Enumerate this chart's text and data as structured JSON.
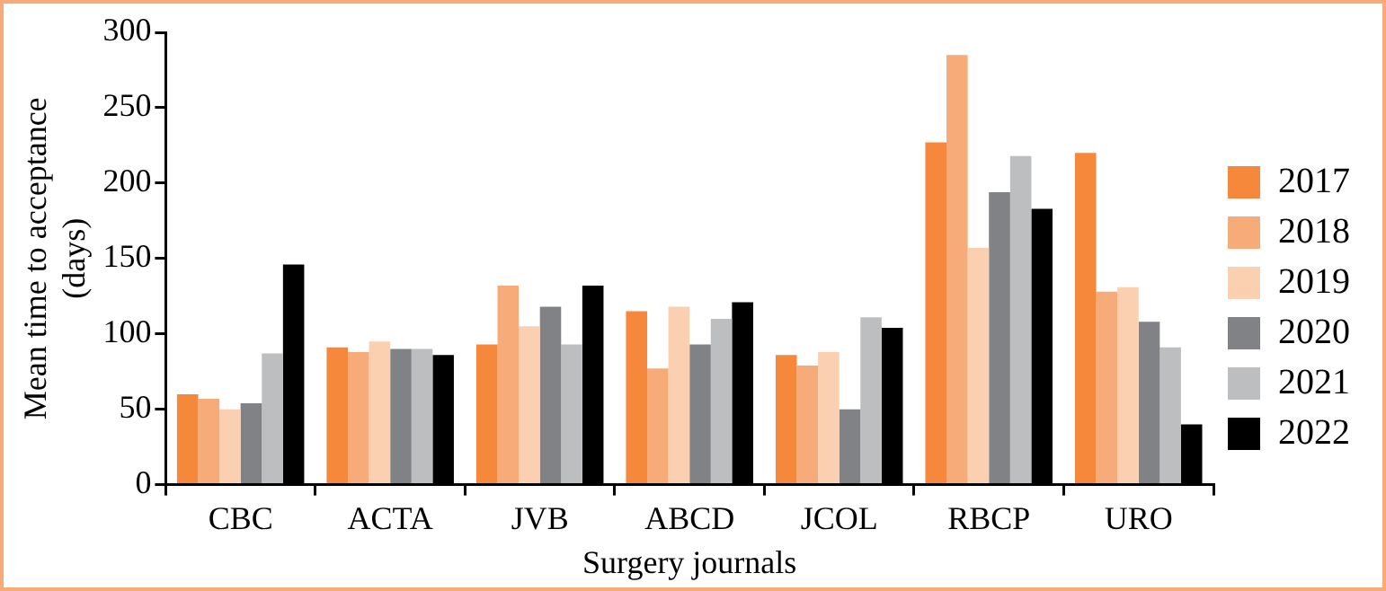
{
  "chart_data": {
    "type": "bar",
    "xlabel": "Surgery journals",
    "ylabel": "Mean time to acceptance (days)",
    "categories": [
      "CBC",
      "ACTA",
      "JVB",
      "ABCD",
      "JCOL",
      "RBCP",
      "URO"
    ],
    "series": [
      {
        "name": "2017",
        "color": "#f5883a",
        "values": [
          60,
          91,
          93,
          115,
          86,
          227,
          220
        ]
      },
      {
        "name": "2018",
        "color": "#f7ab78",
        "values": [
          57,
          88,
          132,
          77,
          79,
          285,
          128
        ]
      },
      {
        "name": "2019",
        "color": "#fad0b0",
        "values": [
          50,
          95,
          105,
          118,
          88,
          157,
          131
        ]
      },
      {
        "name": "2020",
        "color": "#808285",
        "values": [
          54,
          90,
          118,
          93,
          50,
          194,
          108
        ]
      },
      {
        "name": "2021",
        "color": "#bcbec0",
        "values": [
          87,
          90,
          93,
          110,
          111,
          218,
          91
        ]
      },
      {
        "name": "2022",
        "color": "#000000",
        "values": [
          146,
          86,
          132,
          121,
          104,
          183,
          40
        ]
      }
    ],
    "ylim": [
      0,
      300
    ],
    "yticks": [
      0,
      50,
      100,
      150,
      200,
      250,
      300
    ],
    "grid": false,
    "legend": "right"
  }
}
